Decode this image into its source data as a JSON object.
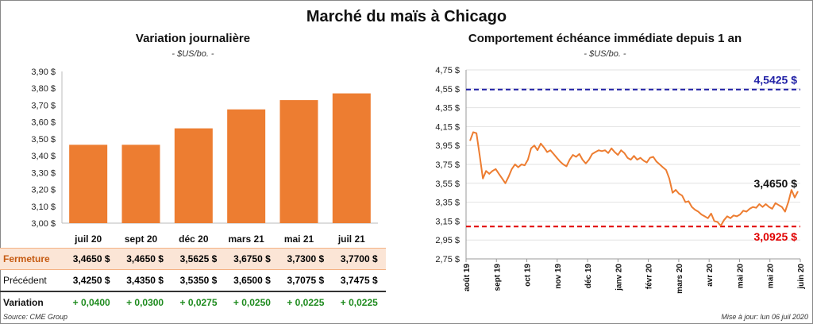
{
  "title": "Marché du maïs à Chicago",
  "chart_data": [
    {
      "type": "bar",
      "title": "Variation  journalière",
      "subtitle": "- $US/bo. -",
      "categories": [
        "juil 20",
        "sept 20",
        "déc 20",
        "mars 21",
        "mai 21",
        "juil 21"
      ],
      "values": [
        3.465,
        3.465,
        3.5625,
        3.675,
        3.73,
        3.77
      ],
      "ylim": [
        3.0,
        3.9
      ],
      "yticks": [
        "3,00 $",
        "3,10 $",
        "3,20 $",
        "3,30 $",
        "3,40 $",
        "3,50 $",
        "3,60 $",
        "3,70 $",
        "3,80 $",
        "3,90 $"
      ],
      "bar_color": "#ed7d31",
      "table": {
        "rows": [
          {
            "label": "Fermeture",
            "values": [
              "3,4650  $",
              "3,4650  $",
              "3,5625  $",
              "3,6750  $",
              "3,7300  $",
              "3,7700  $"
            ]
          },
          {
            "label": "Précédent",
            "values": [
              "3,4250  $",
              "3,4350  $",
              "3,5350  $",
              "3,6500  $",
              "3,7075  $",
              "3,7475  $"
            ]
          },
          {
            "label": "Variation",
            "values": [
              "+ 0,0400",
              "+ 0,0300",
              "+ 0,0275",
              "+ 0,0250",
              "+ 0,0225",
              "+ 0,0225"
            ]
          }
        ]
      }
    },
    {
      "type": "line",
      "title": "Comportement  échéance immédiate  depuis 1 an",
      "subtitle": "- $US/bo. -",
      "ylim": [
        2.75,
        4.75
      ],
      "yticks": [
        "2,75 $",
        "2,95 $",
        "3,15 $",
        "3,35 $",
        "3,55 $",
        "3,75 $",
        "3,95 $",
        "4,15 $",
        "4,35 $",
        "4,55 $",
        "4,75 $"
      ],
      "xticks": [
        "août 19",
        "sept 19",
        "oct 19",
        "nov 19",
        "déc 19",
        "janv 20",
        "févr 20",
        "mars 20",
        "avr 20",
        "mai 20",
        "mai 20",
        "juin 20"
      ],
      "series": [
        {
          "color": "#ed7d31",
          "values": [
            4.0,
            4.09,
            4.08,
            3.85,
            3.6,
            3.68,
            3.65,
            3.68,
            3.7,
            3.65,
            3.6,
            3.55,
            3.62,
            3.7,
            3.75,
            3.72,
            3.75,
            3.74,
            3.8,
            3.92,
            3.95,
            3.9,
            3.97,
            3.93,
            3.88,
            3.9,
            3.86,
            3.82,
            3.78,
            3.75,
            3.73,
            3.8,
            3.85,
            3.83,
            3.86,
            3.8,
            3.76,
            3.8,
            3.86,
            3.88,
            3.9,
            3.89,
            3.9,
            3.87,
            3.92,
            3.88,
            3.85,
            3.9,
            3.87,
            3.82,
            3.8,
            3.84,
            3.8,
            3.82,
            3.79,
            3.77,
            3.82,
            3.83,
            3.78,
            3.75,
            3.72,
            3.69,
            3.6,
            3.45,
            3.48,
            3.44,
            3.42,
            3.35,
            3.36,
            3.3,
            3.27,
            3.25,
            3.22,
            3.2,
            3.18,
            3.23,
            3.15,
            3.14,
            3.1,
            3.16,
            3.2,
            3.18,
            3.21,
            3.2,
            3.22,
            3.26,
            3.25,
            3.28,
            3.3,
            3.29,
            3.33,
            3.3,
            3.33,
            3.3,
            3.28,
            3.34,
            3.32,
            3.3,
            3.25,
            3.35,
            3.48,
            3.4,
            3.465
          ]
        }
      ],
      "hlines": [
        {
          "value": 4.5425,
          "label": "4,5425 $",
          "color": "#1f1fa5"
        },
        {
          "value": 3.0925,
          "label": "3,0925 $",
          "color": "#e00000"
        }
      ],
      "last_label": "3,4650 $"
    }
  ],
  "footer": {
    "source": "Source: CME Group",
    "update": "Mise à jour: lun 06 juil 2020"
  }
}
